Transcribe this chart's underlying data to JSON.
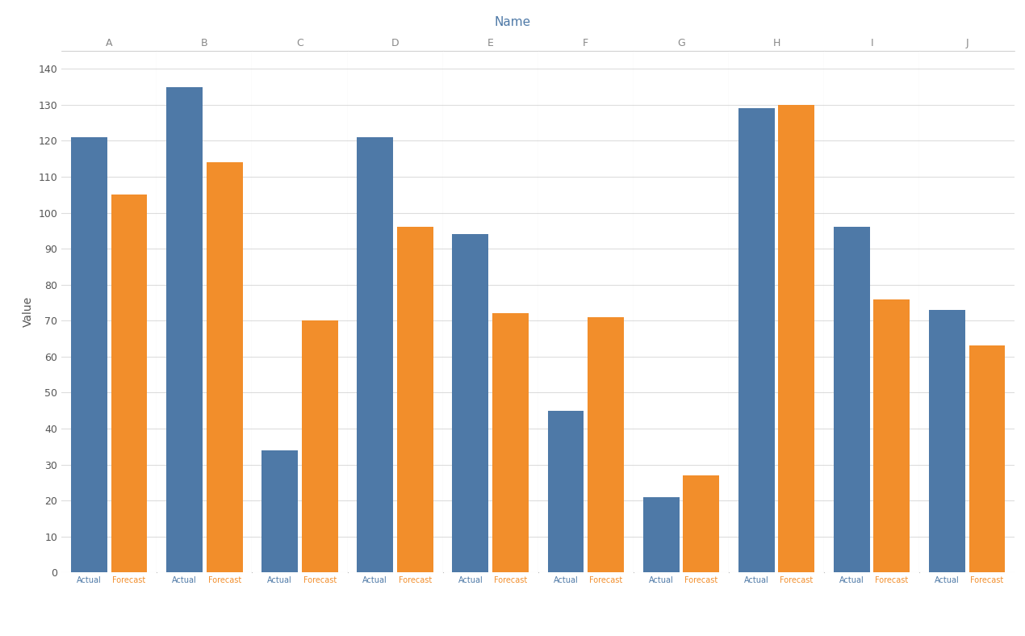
{
  "title": "Name",
  "ylabel": "Value",
  "categories": [
    "A",
    "B",
    "C",
    "D",
    "E",
    "F",
    "G",
    "H",
    "I",
    "J"
  ],
  "actual": [
    121,
    135,
    34,
    121,
    94,
    45,
    21,
    129,
    96,
    73
  ],
  "forecast": [
    105,
    114,
    70,
    96,
    72,
    71,
    27,
    130,
    76,
    63
  ],
  "actual_color": "#4E79A7",
  "forecast_color": "#F28E2B",
  "bg_color": "#FFFFFF",
  "grid_color": "#DDDDDD",
  "title_color": "#4E79A7",
  "ylim": [
    0,
    145
  ],
  "yticks": [
    0,
    10,
    20,
    30,
    40,
    50,
    60,
    70,
    80,
    90,
    100,
    110,
    120,
    130,
    140
  ],
  "bar_width": 0.38,
  "divider_color": "#BBBBBB",
  "cat_label_color": "#888888"
}
